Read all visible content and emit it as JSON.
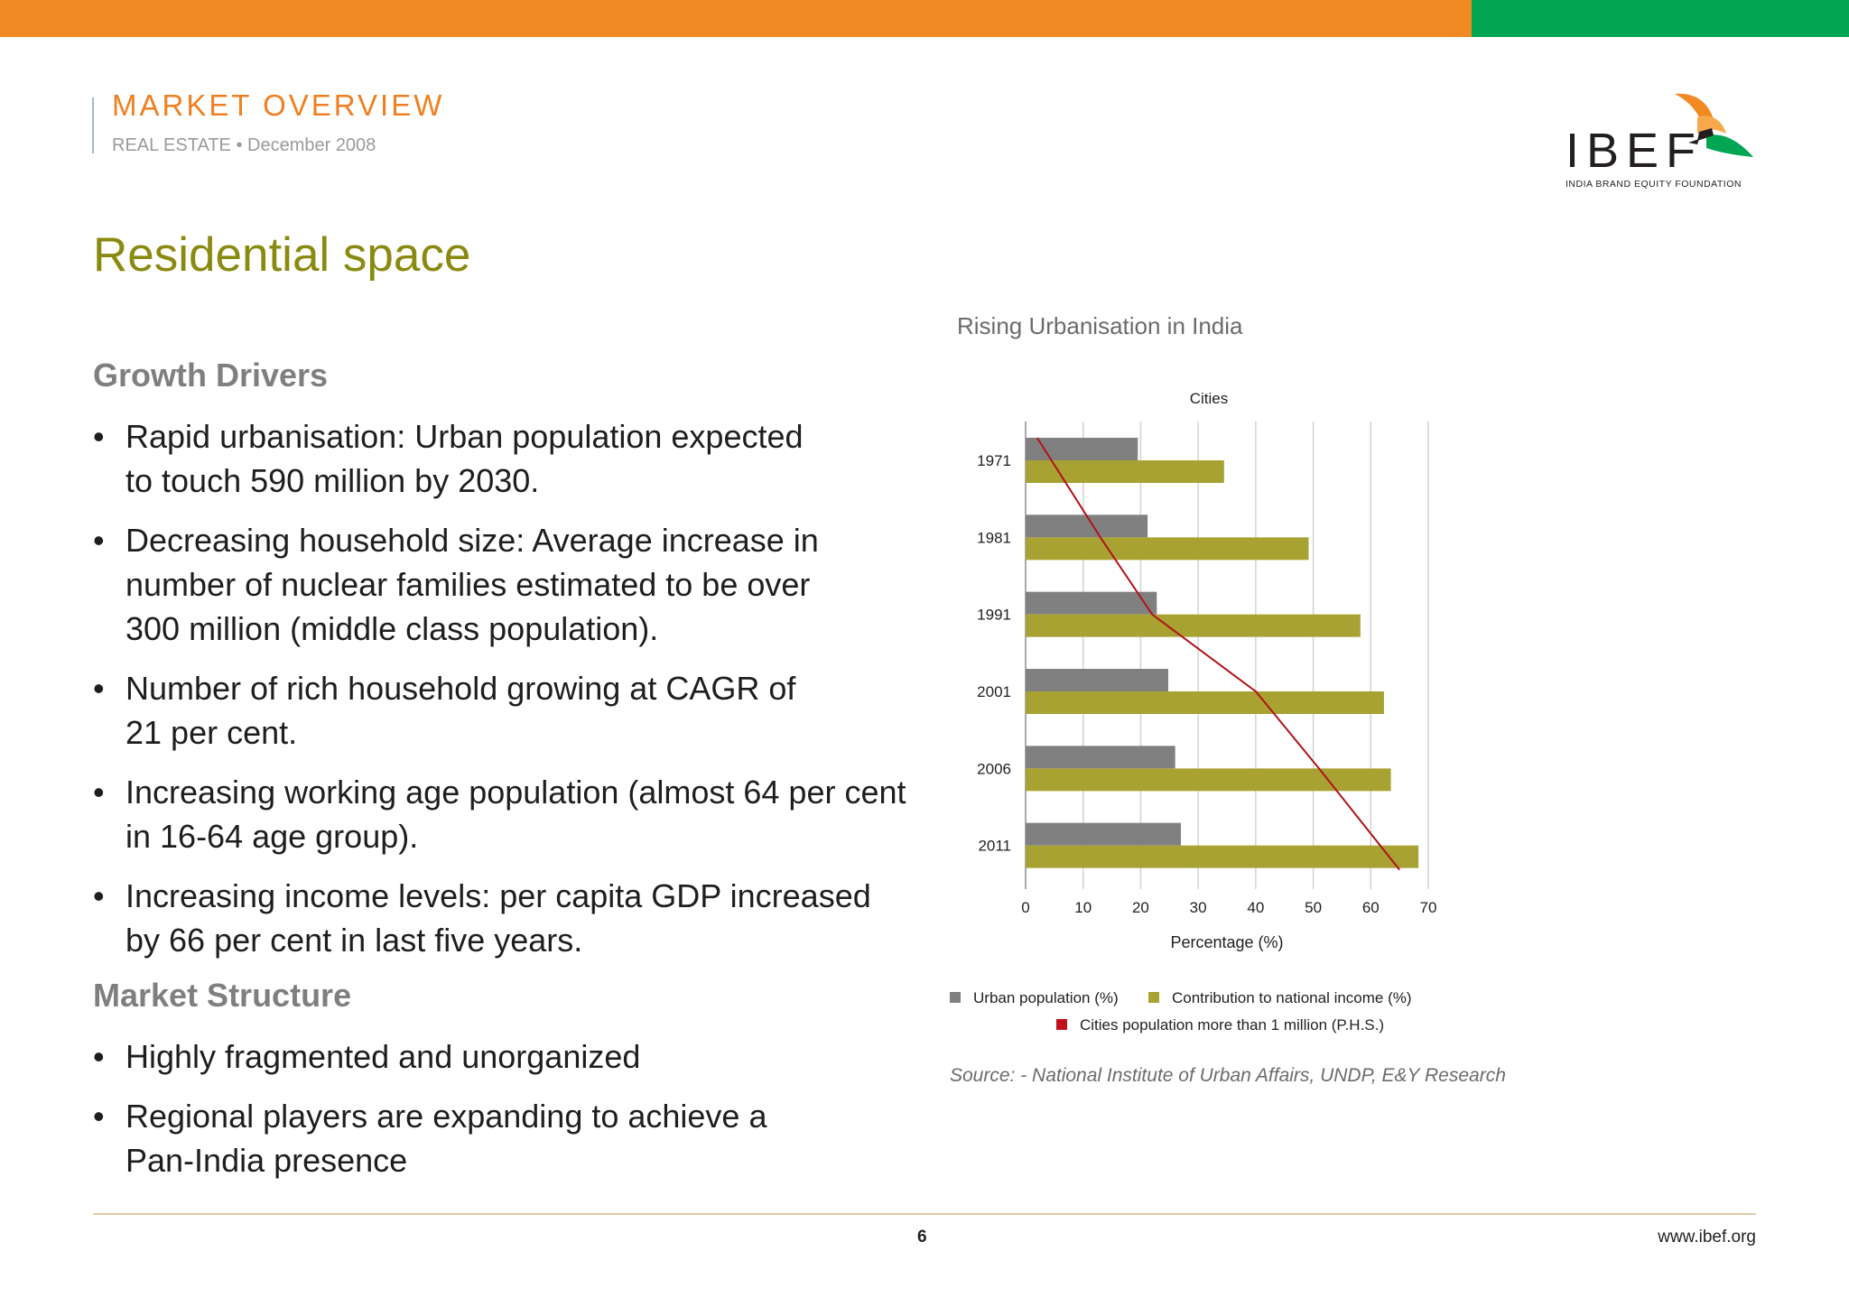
{
  "header": {
    "title": "MARKET OVERVIEW",
    "subtitle": "REAL ESTATE • December 2008",
    "accent_orange": "#f28a24",
    "accent_green": "#00a651"
  },
  "logo": {
    "text": "IBEF",
    "tagline": "INDIA BRAND EQUITY FOUNDATION"
  },
  "page_title": "Residential space",
  "sections": [
    {
      "heading": "Growth Drivers",
      "bullets": [
        {
          "line1": "Rapid urbanisation: Urban population expected",
          "line2": "to touch 590 million by 2030.",
          "line3": ""
        },
        {
          "line1": "Decreasing household size: Average increase in",
          "line2": "number of nuclear families estimated to be over",
          "line3": "300 million (middle class population)."
        },
        {
          "line1": "Number of rich household growing at CAGR of",
          "line2": "21 per cent.",
          "line3": ""
        },
        {
          "line1": "Increasing working age population (almost 64 per cent",
          "line2": "in 16-64 age group).",
          "line3": ""
        },
        {
          "line1": "Increasing income levels: per capita GDP increased",
          "line2": "by 66 per cent in last five years.",
          "line3": ""
        }
      ]
    },
    {
      "heading": "Market Structure",
      "bullets": [
        {
          "line1": "Highly fragmented and unorganized",
          "line2": "",
          "line3": ""
        },
        {
          "line1": "Regional players are expanding to achieve a",
          "line2": "Pan-India presence",
          "line3": ""
        }
      ]
    }
  ],
  "bullet_glyph": "•",
  "chart_title": "Rising Urbanisation in India",
  "chart_data": {
    "type": "bar",
    "orientation": "horizontal",
    "title": "Cities",
    "xlabel": "Percentage (%)",
    "ylabel": "",
    "categories": [
      "1971",
      "1981",
      "1991",
      "2001",
      "2006",
      "2011"
    ],
    "xlim": [
      0,
      70
    ],
    "xticks": [
      0,
      10,
      20,
      30,
      40,
      50,
      60,
      70
    ],
    "grid": true,
    "series": [
      {
        "name": "Urban population (%)",
        "type": "bar",
        "color": "#808080",
        "values": [
          19.5,
          21.2,
          22.8,
          24.8,
          26,
          27
        ]
      },
      {
        "name": "Contribution to national income (%)",
        "type": "bar",
        "color": "#a8a232",
        "values": [
          34.5,
          49.2,
          58.2,
          62.3,
          63.5,
          68.3
        ]
      },
      {
        "name": "Cities population more than 1 million (P.H.S.)",
        "type": "line",
        "color": "#b0121b",
        "values": [
          2,
          13,
          22,
          40,
          51,
          65
        ]
      }
    ],
    "legend_placement": "bottom"
  },
  "source": "Source: - National Institute of Urban Affairs, UNDP, E&Y Research",
  "footer": {
    "page_number": "6",
    "website": "www.ibef.org"
  }
}
